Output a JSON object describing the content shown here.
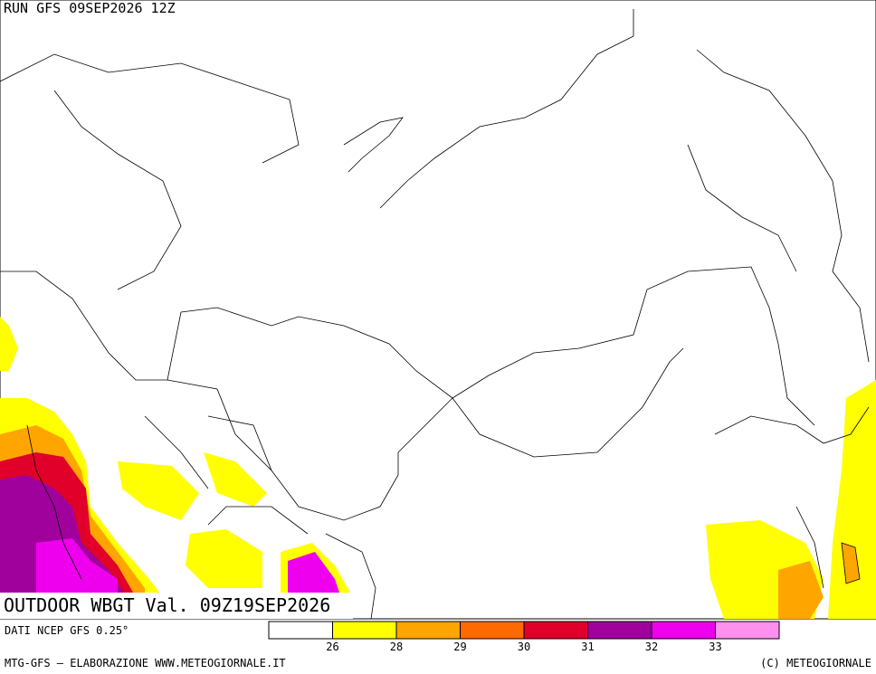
{
  "header": {
    "run": "RUN GFS 09SEP2026 12Z"
  },
  "map": {
    "title": "OUTDOOR WBGT Val. 09Z19SEP2026"
  },
  "legend": {
    "source": "DATI NCEP GFS 0.25°",
    "colors": [
      "#ffffff",
      "#ffff00",
      "#ffa500",
      "#ff6a00",
      "#e0002a",
      "#a0009c",
      "#ee00ee",
      "#ff90ee"
    ],
    "ticks": [
      26,
      28,
      29,
      30,
      31,
      32,
      33
    ]
  },
  "footer": {
    "credits": "MTG-GFS — ELABORAZIONE WWW.METEOGIORNALE.IT",
    "copyright": "(C) METEOGIORNALE"
  }
}
